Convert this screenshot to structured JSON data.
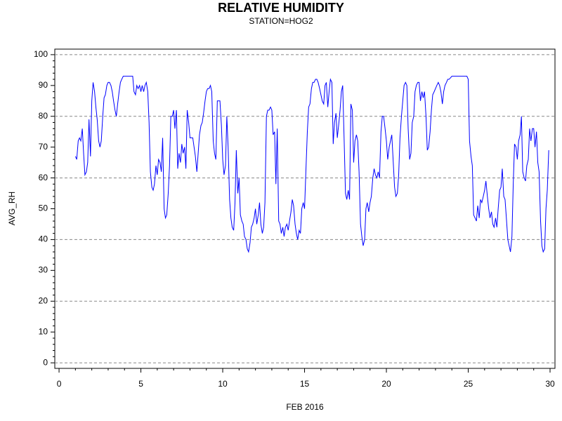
{
  "chart_data": {
    "type": "line",
    "title": "RELATIVE HUMIDITY",
    "subtitle": "STATION=HOG2",
    "x_label": "FEB 2016",
    "y_label": "AVG_RH",
    "color": "#0000ff",
    "grid": true,
    "xlim": [
      -0.26,
      30.3
    ],
    "xticks": [
      0,
      5,
      10,
      15,
      20,
      25,
      30
    ],
    "ylim": [
      -1.8,
      101.8
    ],
    "yticks": [
      0,
      10,
      20,
      30,
      40,
      50,
      60,
      70,
      80,
      90,
      100
    ],
    "x": [
      1,
      1.08,
      1.17,
      1.25,
      1.33,
      1.42,
      1.5,
      1.58,
      1.67,
      1.75,
      1.83,
      1.92,
      2,
      2.08,
      2.17,
      2.25,
      2.33,
      2.42,
      2.5,
      2.58,
      2.67,
      2.75,
      2.83,
      2.92,
      3,
      3.08,
      3.17,
      3.25,
      3.33,
      3.42,
      3.5,
      3.58,
      3.67,
      3.75,
      3.83,
      3.92,
      4,
      4.08,
      4.17,
      4.25,
      4.33,
      4.42,
      4.5,
      4.58,
      4.67,
      4.75,
      4.83,
      4.92,
      5,
      5.08,
      5.17,
      5.25,
      5.33,
      5.42,
      5.5,
      5.58,
      5.67,
      5.75,
      5.83,
      5.92,
      6,
      6.08,
      6.17,
      6.25,
      6.33,
      6.42,
      6.5,
      6.58,
      6.67,
      6.75,
      6.83,
      6.92,
      7,
      7.08,
      7.17,
      7.25,
      7.33,
      7.42,
      7.5,
      7.58,
      7.67,
      7.75,
      7.83,
      7.92,
      8,
      8.08,
      8.17,
      8.25,
      8.33,
      8.42,
      8.5,
      8.58,
      8.67,
      8.75,
      8.83,
      8.92,
      9,
      9.08,
      9.17,
      9.25,
      9.33,
      9.42,
      9.5,
      9.58,
      9.67,
      9.75,
      9.83,
      9.92,
      10,
      10.08,
      10.17,
      10.25,
      10.33,
      10.42,
      10.5,
      10.58,
      10.67,
      10.75,
      10.83,
      10.92,
      11,
      11.08,
      11.17,
      11.25,
      11.33,
      11.42,
      11.5,
      11.58,
      11.67,
      11.75,
      11.83,
      11.92,
      12,
      12.08,
      12.17,
      12.25,
      12.33,
      12.42,
      12.5,
      12.58,
      12.67,
      12.75,
      12.83,
      12.92,
      13,
      13.08,
      13.17,
      13.25,
      13.33,
      13.42,
      13.5,
      13.58,
      13.67,
      13.75,
      13.83,
      13.92,
      14,
      14.08,
      14.17,
      14.25,
      14.33,
      14.42,
      14.5,
      14.58,
      14.67,
      14.75,
      14.83,
      14.92,
      15,
      15.08,
      15.17,
      15.25,
      15.33,
      15.42,
      15.5,
      15.58,
      15.67,
      15.75,
      15.83,
      15.92,
      16,
      16.08,
      16.17,
      16.25,
      16.33,
      16.42,
      16.5,
      16.58,
      16.67,
      16.75,
      16.83,
      16.92,
      17,
      17.08,
      17.17,
      17.25,
      17.33,
      17.42,
      17.5,
      17.58,
      17.67,
      17.75,
      17.83,
      17.92,
      18,
      18.08,
      18.17,
      18.25,
      18.33,
      18.42,
      18.5,
      18.58,
      18.67,
      18.75,
      18.83,
      18.92,
      19,
      19.08,
      19.17,
      19.25,
      19.33,
      19.42,
      19.5,
      19.58,
      19.67,
      19.75,
      19.83,
      19.92,
      20,
      20.08,
      20.17,
      20.25,
      20.33,
      20.42,
      20.5,
      20.58,
      20.67,
      20.75,
      20.83,
      20.92,
      21,
      21.08,
      21.17,
      21.25,
      21.33,
      21.42,
      21.5,
      21.58,
      21.67,
      21.75,
      21.83,
      21.92,
      22,
      22.08,
      22.17,
      22.25,
      22.33,
      22.42,
      22.5,
      22.58,
      22.67,
      22.75,
      22.83,
      22.92,
      23,
      23.08,
      23.17,
      23.25,
      23.33,
      23.42,
      23.5,
      23.58,
      23.67,
      23.75,
      23.83,
      23.92,
      24,
      24.08,
      24.17,
      24.25,
      24.33,
      24.42,
      24.5,
      24.58,
      24.67,
      24.75,
      24.83,
      24.92,
      25,
      25.08,
      25.17,
      25.25,
      25.33,
      25.42,
      25.5,
      25.58,
      25.67,
      25.75,
      25.83,
      25.92,
      26,
      26.08,
      26.17,
      26.25,
      26.33,
      26.42,
      26.5,
      26.58,
      26.67,
      26.75,
      26.83,
      26.92,
      27,
      27.08,
      27.17,
      27.25,
      27.33,
      27.42,
      27.5,
      27.58,
      27.67,
      27.75,
      27.83,
      27.92,
      28,
      28.08,
      28.17,
      28.25,
      28.33,
      28.42,
      28.5,
      28.58,
      28.67,
      28.75,
      28.83,
      28.92,
      29,
      29.08,
      29.17,
      29.25,
      29.33,
      29.42,
      29.5,
      29.58,
      29.67,
      29.75,
      29.83,
      29.92
    ],
    "values": [
      67,
      66,
      72,
      73,
      72,
      76,
      68,
      61,
      62,
      65,
      79,
      67,
      85,
      91,
      88,
      83,
      79,
      72,
      70,
      72,
      80,
      86,
      87,
      90,
      91,
      91,
      90,
      88,
      85,
      82,
      80,
      84,
      88,
      91,
      92,
      93,
      93,
      93,
      93,
      93,
      93,
      93,
      93,
      88,
      87,
      90,
      89,
      90,
      88,
      90,
      88,
      90,
      91,
      88,
      78,
      62,
      57,
      56,
      58,
      64,
      61,
      66,
      65,
      62,
      73,
      50,
      47,
      48,
      55,
      64,
      80,
      80,
      82,
      76,
      82,
      63,
      68,
      65,
      71,
      68,
      70,
      63,
      82,
      78,
      73,
      73,
      73,
      70,
      67,
      62,
      68,
      74,
      77,
      78,
      81,
      85,
      88,
      89,
      89,
      90,
      88,
      72,
      68,
      66,
      85,
      85,
      85,
      77,
      66,
      61,
      64,
      80,
      70,
      53,
      47,
      44,
      43,
      52,
      69,
      55,
      60,
      48,
      46,
      45,
      41,
      40,
      37,
      36,
      39,
      44,
      45,
      47,
      50,
      45,
      48,
      52,
      45,
      42,
      44,
      52,
      80,
      82,
      82,
      83,
      82,
      74,
      75,
      58,
      76,
      46,
      45,
      42,
      44,
      41,
      44,
      45,
      43,
      46,
      49,
      53,
      51,
      45,
      42,
      40,
      43,
      42,
      50,
      52,
      50,
      62,
      75,
      83,
      84,
      89,
      91,
      91,
      92,
      92,
      91,
      89,
      87,
      85,
      84,
      90,
      91,
      83,
      88,
      92,
      91,
      71,
      78,
      81,
      73,
      77,
      82,
      88,
      90,
      72,
      55,
      53,
      56,
      53,
      84,
      82,
      65,
      72,
      74,
      72,
      62,
      45,
      41,
      38,
      40,
      50,
      52,
      49,
      52,
      54,
      60,
      63,
      61,
      60,
      62,
      60,
      75,
      80,
      80,
      76,
      72,
      66,
      70,
      72,
      74,
      65,
      57,
      54,
      55,
      61,
      73,
      80,
      85,
      90,
      91,
      90,
      76,
      66,
      68,
      78,
      80,
      88,
      90,
      91,
      91,
      85,
      88,
      86,
      88,
      80,
      69,
      70,
      75,
      82,
      87,
      88,
      89,
      90,
      91,
      90,
      88,
      84,
      88,
      90,
      91,
      92,
      92,
      92.5,
      93,
      93,
      93,
      93,
      93,
      93,
      93,
      93,
      93,
      93,
      93,
      93,
      92,
      72,
      67,
      64,
      48,
      47,
      46,
      51,
      47,
      53,
      52,
      54,
      56,
      59,
      54,
      50,
      47,
      49,
      45,
      44,
      47,
      44,
      50,
      56,
      57,
      63,
      54,
      53,
      47,
      40,
      38,
      36,
      41,
      58,
      71,
      70,
      66,
      72,
      74,
      80,
      62,
      60,
      59,
      64,
      66,
      76,
      72,
      76,
      76,
      70,
      75,
      65,
      62,
      46,
      38,
      36,
      37,
      50,
      56,
      69
    ]
  }
}
